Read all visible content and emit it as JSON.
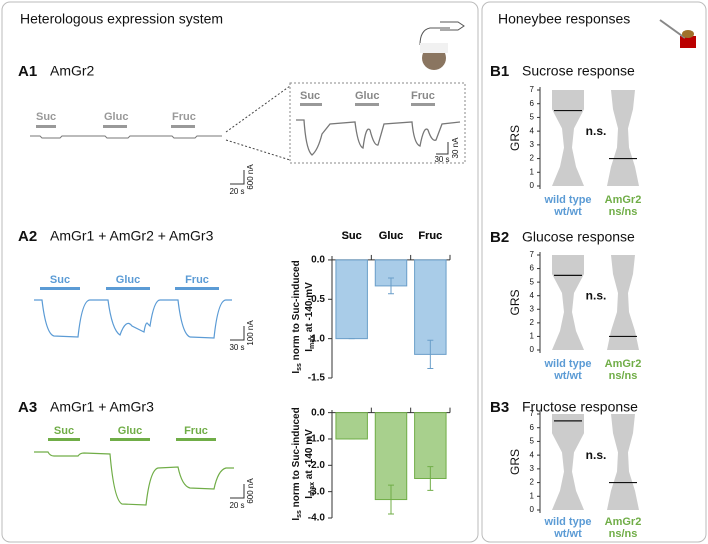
{
  "left_header": "Heterologous expression system",
  "right_header": "Honeybee responses",
  "traces": {
    "A1": {
      "label": "A1",
      "construct": "AmGr2",
      "stimuli": [
        "Suc",
        "Gluc",
        "Fruc"
      ],
      "inset_stimuli": [
        "Suc",
        "Gluc",
        "Fruc"
      ],
      "scale_current": "600 nA",
      "scale_time": "20 s",
      "inset_scale_current": "30 nA",
      "inset_scale_time": "30 s"
    },
    "A2": {
      "label": "A2",
      "construct": "AmGr1 + AmGr2 + AmGr3",
      "stimuli": [
        "Suc",
        "Gluc",
        "Fruc"
      ],
      "scale_current": "100 nA",
      "scale_time": "30 s"
    },
    "A3": {
      "label": "A3",
      "construct": "AmGr1 + AmGr3",
      "stimuli": [
        "Suc",
        "Gluc",
        "Fruc"
      ],
      "scale_current": "600 nA",
      "scale_time": "20 s"
    }
  },
  "chart_data": [
    {
      "type": "bar",
      "categories": [
        "Suc",
        "Gluc",
        "Fruc"
      ],
      "values": [
        -1.0,
        -0.33,
        -1.2
      ],
      "errors": [
        0,
        0.1,
        0.18
      ],
      "color": "#a9cce8",
      "edge": "#6a9ec9",
      "ylim": [
        -1.5,
        0.05
      ],
      "yticks": [
        {
          "value": 0,
          "label": "0.0"
        },
        -0.5,
        {
          "value": -1,
          "label": "-1.0"
        },
        -1.5
      ],
      "ylabel": {
        "line1": [
          "I",
          "ss",
          " norm to Suc-induced"
        ],
        "line2": [
          "I",
          "max",
          " at -140 mV"
        ]
      }
    },
    {
      "type": "bar",
      "categories": [
        "Suc",
        "Gluc",
        "Fruc"
      ],
      "values": [
        -1.0,
        -3.3,
        -2.5
      ],
      "errors": [
        0,
        0.55,
        0.45
      ],
      "color": "#a8d08d",
      "edge": "#70ad47",
      "ylim": [
        -4,
        0.1
      ],
      "yticks": [
        {
          "value": 0,
          "label": "0.0"
        },
        {
          "value": -1,
          "label": "-1.0"
        },
        {
          "value": -2,
          "label": "-2.0"
        },
        {
          "value": -3,
          "label": "-3.0"
        },
        {
          "value": -4,
          "label": "-4.0"
        }
      ],
      "ylabel": {
        "line1": [
          "I",
          "ss",
          " norm to Suc-induced"
        ],
        "line2": [
          "I",
          "max",
          " at -140 mV"
        ]
      }
    },
    {
      "type": "violin",
      "label": "B1",
      "title": "Sucrose response",
      "categories": [
        "wild type",
        "AmGr2"
      ],
      "category_sublabels": [
        "wt/wt",
        "ns/ns"
      ],
      "colors": [
        "#5b9bd5",
        "#70ad47"
      ],
      "values": [
        5.5,
        2
      ],
      "ylim": [
        0,
        7
      ],
      "yticks": [
        0,
        1,
        2,
        3,
        4,
        5,
        6,
        7
      ],
      "ylabel": "GRS",
      "annotation": "n.s."
    },
    {
      "type": "violin",
      "label": "B2",
      "title": "Glucose response",
      "categories": [
        "wild type",
        "AmGr2"
      ],
      "category_sublabels": [
        "wt/wt",
        "ns/ns"
      ],
      "colors": [
        "#5b9bd5",
        "#70ad47"
      ],
      "values": [
        5.5,
        1
      ],
      "ylim": [
        0,
        7
      ],
      "yticks": [
        0,
        1,
        2,
        3,
        4,
        5,
        6,
        7
      ],
      "ylabel": "GRS",
      "annotation": "n.s."
    },
    {
      "type": "violin",
      "label": "B3",
      "title": "Fructose response",
      "categories": [
        "wild type",
        "AmGr2"
      ],
      "category_sublabels": [
        "wt/wt",
        "ns/ns"
      ],
      "colors": [
        "#5b9bd5",
        "#70ad47"
      ],
      "values": [
        6.5,
        2
      ],
      "ylim": [
        0,
        7
      ],
      "yticks": [
        0,
        1,
        2,
        3,
        4,
        5,
        6,
        7
      ],
      "ylabel": "GRS",
      "annotation": "n.s."
    }
  ]
}
